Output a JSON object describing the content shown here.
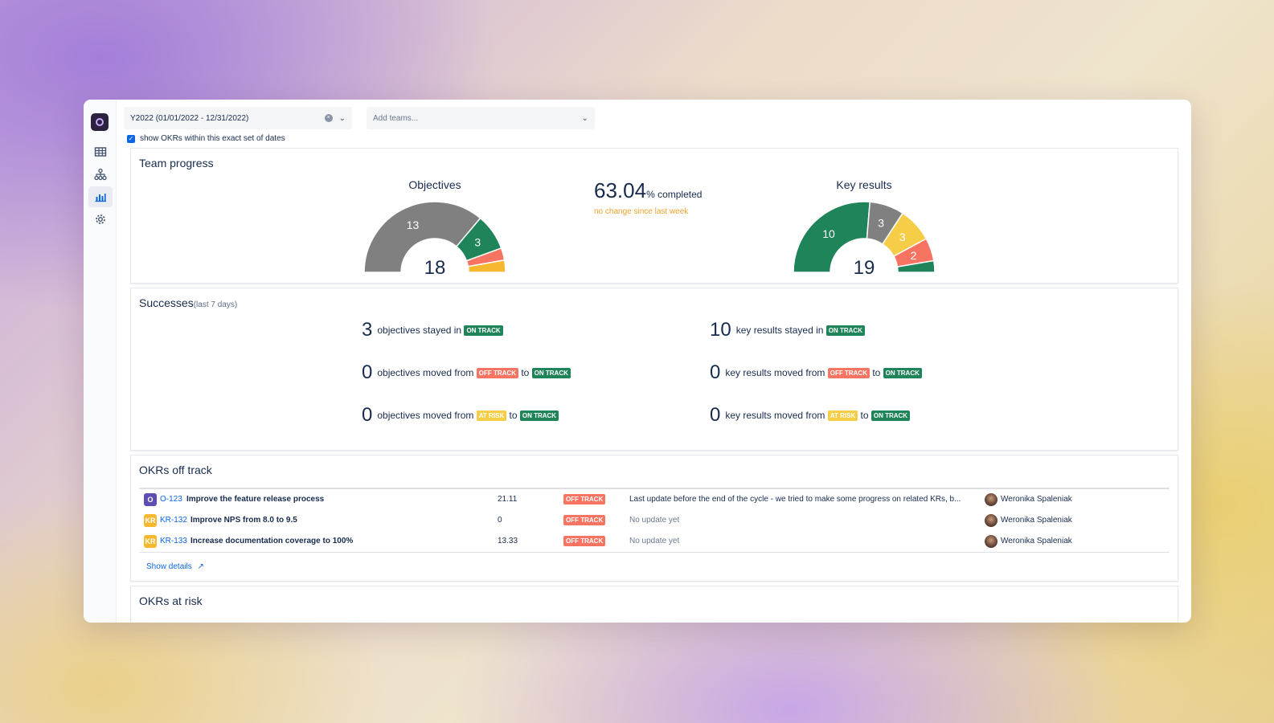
{
  "sidebar": {
    "logo_icon": "app-logo-icon",
    "items": [
      {
        "icon": "table-icon",
        "active": false
      },
      {
        "icon": "hierarchy-icon",
        "active": false
      },
      {
        "icon": "bar-chart-icon",
        "active": true
      },
      {
        "icon": "gear-icon",
        "active": false
      }
    ]
  },
  "filters": {
    "period_value": "Y2022 (01/01/2022 - 12/31/2022)",
    "teams_placeholder": "Add teams...",
    "exact_dates_label": "show OKRs within this exact set of dates",
    "exact_dates_checked": true
  },
  "team_progress": {
    "title": "Team progress",
    "objectives": {
      "title": "Objectives",
      "total": "18",
      "segments": [
        {
          "label": "13",
          "value": 13,
          "color": "#808080"
        },
        {
          "label": "3",
          "value": 3,
          "color": "#1f845a"
        },
        {
          "label": "",
          "value": 1,
          "color": "#f87462"
        },
        {
          "label": "",
          "value": 1,
          "color": "#f5b82e"
        }
      ],
      "outer_ring": [
        {
          "value": 16,
          "color": "#ffffff"
        },
        {
          "value": 1,
          "color": "#f87462"
        },
        {
          "value": 1,
          "color": "#f87462"
        }
      ]
    },
    "completion": {
      "value": "63.04",
      "label": "% completed",
      "note": "no change since last week"
    },
    "key_results": {
      "title": "Key results",
      "total": "19",
      "segments": [
        {
          "label": "10",
          "value": 10,
          "color": "#1f845a"
        },
        {
          "label": "3",
          "value": 3,
          "color": "#808080"
        },
        {
          "label": "3",
          "value": 3,
          "color": "#f5cd47"
        },
        {
          "label": "2",
          "value": 2,
          "color": "#f87462"
        },
        {
          "label": "",
          "value": 1,
          "color": "#1f845a"
        }
      ]
    }
  },
  "successes": {
    "title": "Successes",
    "subtitle": "(last 7 days)",
    "objectives": [
      {
        "count": "3",
        "text": "objectives stayed in",
        "from": "",
        "to_word": "",
        "to": "ON TRACK"
      },
      {
        "count": "0",
        "text": "objectives moved from",
        "from": "OFF TRACK",
        "to_word": "to",
        "to": "ON TRACK"
      },
      {
        "count": "0",
        "text": "objectives moved from",
        "from": "AT RISK",
        "to_word": "to",
        "to": "ON TRACK"
      }
    ],
    "key_results": [
      {
        "count": "10",
        "text": "key results stayed in",
        "from": "",
        "to_word": "",
        "to": "ON TRACK"
      },
      {
        "count": "0",
        "text": "key results moved from",
        "from": "OFF TRACK",
        "to_word": "to",
        "to": "ON TRACK"
      },
      {
        "count": "0",
        "text": "key results moved from",
        "from": "AT RISK",
        "to_word": "to",
        "to": "ON TRACK"
      }
    ]
  },
  "okrs_off_track": {
    "title": "OKRs off track",
    "rows": [
      {
        "type": "O",
        "id": "O-123",
        "name": "Improve the feature release process",
        "value": "21.11",
        "status": "OFF TRACK",
        "update": "Last update before the end of the cycle - we tried to make some progress on related KRs, b...",
        "owner": "Weronika Spaleniak"
      },
      {
        "type": "KR",
        "id": "KR-132",
        "name": "Improve NPS from 8.0 to 9.5",
        "value": "0",
        "status": "OFF TRACK",
        "update": "No update yet",
        "owner": "Weronika Spaleniak"
      },
      {
        "type": "KR",
        "id": "KR-133",
        "name": "Increase documentation coverage to 100%",
        "value": "13.33",
        "status": "OFF TRACK",
        "update": "No update yet",
        "owner": "Weronika Spaleniak"
      }
    ],
    "show_details": "Show details"
  },
  "okrs_at_risk": {
    "title": "OKRs at risk"
  }
}
